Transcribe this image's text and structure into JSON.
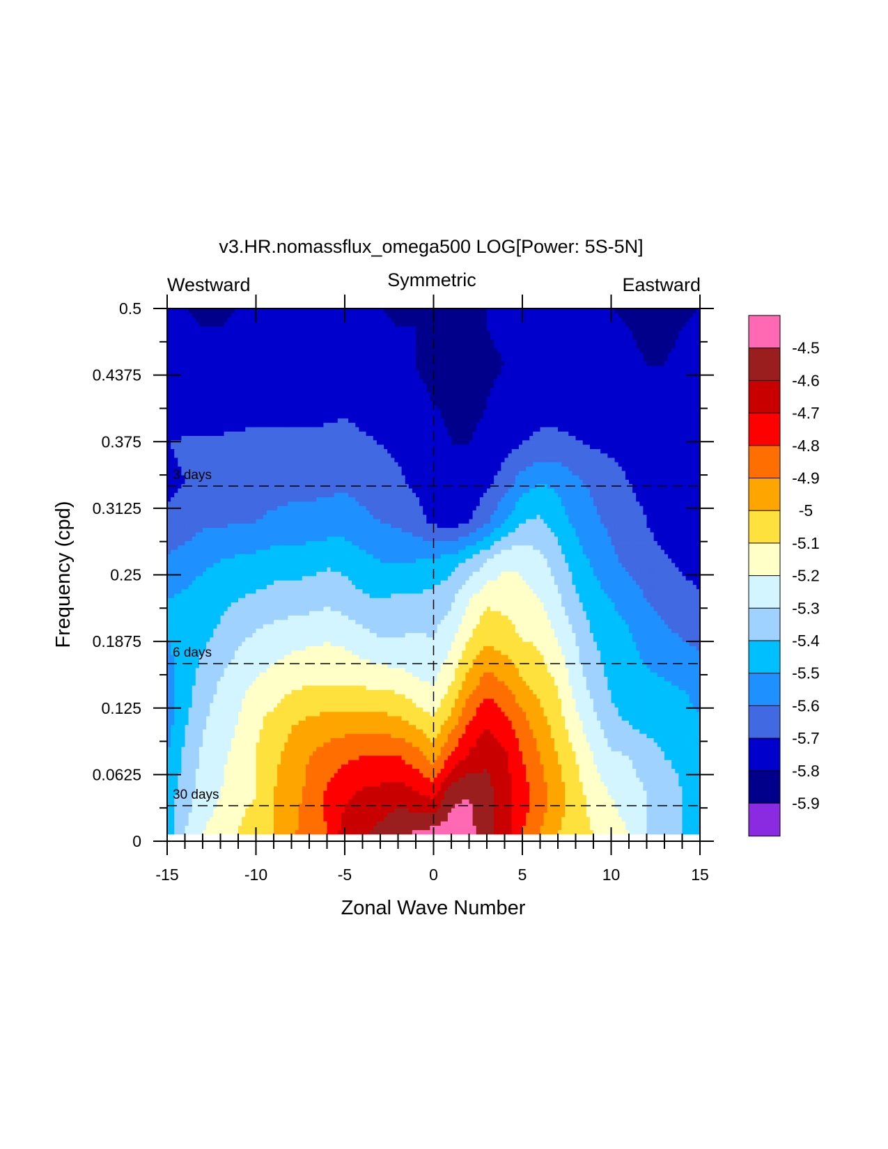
{
  "chart_data": {
    "type": "heatmap",
    "title": "v3.HR.nomassflux_omega500 LOG[Power: 5S-5N]",
    "subtitle_left": "Westward",
    "subtitle_center": "Symmetric",
    "subtitle_right": "Eastward",
    "xlabel": "Zonal Wave Number",
    "ylabel": "Frequency (cpd)",
    "xlim": [
      -15,
      15
    ],
    "ylim": [
      0,
      0.5
    ],
    "x_ticks": [
      -15,
      -10,
      -5,
      0,
      5,
      10,
      15
    ],
    "x_tick_labels": [
      "-15",
      "-10",
      "-5",
      "0",
      "5",
      "10",
      "15"
    ],
    "y_ticks": [
      0,
      0.0625,
      0.125,
      0.1875,
      0.25,
      0.3125,
      0.375,
      0.4375,
      0.5
    ],
    "y_tick_labels": [
      "0",
      "0.0625",
      "0.125",
      "0.1875",
      "0.25",
      "0.3125",
      "0.375",
      "0.4375",
      "0.5"
    ],
    "reference_lines": [
      {
        "label": "3 days",
        "frequency": 0.3333
      },
      {
        "label": "6 days",
        "frequency": 0.1667
      },
      {
        "label": "30 days",
        "frequency": 0.0333
      }
    ],
    "symmetry_line_x": 0,
    "grid_x": [
      -15,
      -14,
      -13,
      -12,
      -11,
      -10,
      -9,
      -8,
      -7,
      -6,
      -5,
      -4,
      -3,
      -2,
      -1,
      0,
      1,
      2,
      3,
      4,
      5,
      6,
      7,
      8,
      9,
      10,
      11,
      12,
      13,
      14,
      15
    ],
    "grid_y": [
      0.00667,
      0.0433,
      0.08,
      0.1167,
      0.1533,
      0.19,
      0.2267,
      0.2633,
      0.3,
      0.3367,
      0.3733,
      0.41,
      0.4467,
      0.4833,
      0.5
    ],
    "z_log10_power": [
      [
        -5.5,
        -5.3,
        -5.2,
        -5.15,
        -5.1,
        -5.0,
        -5.0,
        -4.92,
        -4.85,
        -4.8,
        -4.65,
        -4.62,
        -4.57,
        -4.52,
        -4.48,
        -4.45,
        -4.45,
        -4.47,
        -4.55,
        -4.65,
        -4.8,
        -4.9,
        -5.0,
        -5.05,
        -5.1,
        -5.15,
        -5.2,
        -5.3,
        -5.35,
        -5.4,
        -5.5
      ],
      [
        -5.45,
        -5.35,
        -5.25,
        -5.2,
        -5.15,
        -5.1,
        -5.0,
        -4.93,
        -4.88,
        -4.78,
        -4.72,
        -4.68,
        -4.66,
        -4.64,
        -4.68,
        -4.72,
        -4.52,
        -4.5,
        -4.56,
        -4.65,
        -4.75,
        -4.85,
        -4.95,
        -5.05,
        -5.15,
        -5.2,
        -5.25,
        -5.3,
        -5.35,
        -5.4,
        -5.45
      ],
      [
        -5.5,
        -5.38,
        -5.28,
        -5.22,
        -5.17,
        -5.1,
        -5.03,
        -4.95,
        -4.9,
        -4.85,
        -4.82,
        -4.8,
        -4.8,
        -4.8,
        -4.85,
        -4.95,
        -4.78,
        -4.68,
        -4.62,
        -4.68,
        -4.8,
        -4.9,
        -5.0,
        -5.1,
        -5.2,
        -5.28,
        -5.3,
        -5.35,
        -5.4,
        -5.42,
        -5.5
      ],
      [
        -5.55,
        -5.42,
        -5.32,
        -5.25,
        -5.2,
        -5.12,
        -5.08,
        -5.02,
        -5.0,
        -4.98,
        -4.97,
        -4.97,
        -4.98,
        -5.0,
        -5.05,
        -5.1,
        -4.98,
        -4.82,
        -4.72,
        -4.78,
        -4.88,
        -4.97,
        -5.06,
        -5.18,
        -5.28,
        -5.38,
        -5.42,
        -5.45,
        -5.45,
        -5.45,
        -5.5
      ],
      [
        -5.55,
        -5.45,
        -5.36,
        -5.3,
        -5.24,
        -5.2,
        -5.17,
        -5.14,
        -5.12,
        -5.12,
        -5.13,
        -5.14,
        -5.15,
        -5.16,
        -5.2,
        -5.22,
        -5.12,
        -4.97,
        -4.87,
        -4.92,
        -5.0,
        -5.05,
        -5.12,
        -5.25,
        -5.35,
        -5.42,
        -5.45,
        -5.48,
        -5.5,
        -5.52,
        -5.55
      ],
      [
        -5.5,
        -5.45,
        -5.42,
        -5.38,
        -5.32,
        -5.28,
        -5.25,
        -5.23,
        -5.22,
        -5.21,
        -5.22,
        -5.26,
        -5.3,
        -5.3,
        -5.28,
        -5.3,
        -5.22,
        -5.1,
        -5.02,
        -5.05,
        -5.1,
        -5.12,
        -5.2,
        -5.3,
        -5.4,
        -5.45,
        -5.48,
        -5.55,
        -5.58,
        -5.6,
        -5.62
      ],
      [
        -5.5,
        -5.48,
        -5.45,
        -5.42,
        -5.4,
        -5.38,
        -5.36,
        -5.35,
        -5.34,
        -5.32,
        -5.35,
        -5.38,
        -5.4,
        -5.38,
        -5.38,
        -5.36,
        -5.32,
        -5.2,
        -5.12,
        -5.13,
        -5.17,
        -5.2,
        -5.28,
        -5.38,
        -5.45,
        -5.5,
        -5.55,
        -5.6,
        -5.63,
        -5.66,
        -5.68
      ],
      [
        -5.58,
        -5.55,
        -5.52,
        -5.5,
        -5.48,
        -5.47,
        -5.45,
        -5.45,
        -5.44,
        -5.42,
        -5.43,
        -5.47,
        -5.5,
        -5.5,
        -5.5,
        -5.48,
        -5.45,
        -5.38,
        -5.3,
        -5.22,
        -5.22,
        -5.27,
        -5.35,
        -5.45,
        -5.52,
        -5.58,
        -5.62,
        -5.66,
        -5.69,
        -5.72,
        -5.75
      ],
      [
        -5.68,
        -5.66,
        -5.62,
        -5.62,
        -5.6,
        -5.6,
        -5.58,
        -5.57,
        -5.57,
        -5.56,
        -5.55,
        -5.58,
        -5.6,
        -5.62,
        -5.65,
        -5.72,
        -5.75,
        -5.7,
        -5.62,
        -5.5,
        -5.4,
        -5.38,
        -5.45,
        -5.52,
        -5.58,
        -5.62,
        -5.66,
        -5.7,
        -5.74,
        -5.78,
        -5.8
      ],
      [
        -5.72,
        -5.7,
        -5.68,
        -5.67,
        -5.66,
        -5.65,
        -5.64,
        -5.63,
        -5.63,
        -5.62,
        -5.62,
        -5.63,
        -5.66,
        -5.68,
        -5.72,
        -5.78,
        -5.8,
        -5.78,
        -5.72,
        -5.65,
        -5.55,
        -5.5,
        -5.52,
        -5.58,
        -5.62,
        -5.66,
        -5.7,
        -5.73,
        -5.76,
        -5.78,
        -5.8
      ],
      [
        -5.7,
        -5.69,
        -5.68,
        -5.68,
        -5.67,
        -5.66,
        -5.66,
        -5.66,
        -5.67,
        -5.67,
        -5.66,
        -5.68,
        -5.7,
        -5.72,
        -5.74,
        -5.78,
        -5.8,
        -5.8,
        -5.78,
        -5.74,
        -5.7,
        -5.67,
        -5.67,
        -5.69,
        -5.71,
        -5.72,
        -5.73,
        -5.75,
        -5.77,
        -5.78,
        -5.78
      ],
      [
        -5.75,
        -5.75,
        -5.76,
        -5.76,
        -5.76,
        -5.75,
        -5.75,
        -5.75,
        -5.74,
        -5.73,
        -5.72,
        -5.74,
        -5.77,
        -5.78,
        -5.79,
        -5.8,
        -5.81,
        -5.82,
        -5.8,
        -5.78,
        -5.76,
        -5.75,
        -5.75,
        -5.75,
        -5.76,
        -5.76,
        -5.77,
        -5.78,
        -5.79,
        -5.78,
        -5.78
      ],
      [
        -5.76,
        -5.77,
        -5.78,
        -5.79,
        -5.79,
        -5.78,
        -5.77,
        -5.76,
        -5.76,
        -5.75,
        -5.76,
        -5.77,
        -5.78,
        -5.79,
        -5.8,
        -5.81,
        -5.82,
        -5.82,
        -5.81,
        -5.8,
        -5.79,
        -5.77,
        -5.76,
        -5.76,
        -5.77,
        -5.78,
        -5.79,
        -5.8,
        -5.8,
        -5.79,
        -5.78
      ],
      [
        -5.78,
        -5.79,
        -5.8,
        -5.8,
        -5.79,
        -5.78,
        -5.78,
        -5.77,
        -5.77,
        -5.76,
        -5.77,
        -5.78,
        -5.79,
        -5.8,
        -5.8,
        -5.81,
        -5.82,
        -5.81,
        -5.8,
        -5.79,
        -5.78,
        -5.77,
        -5.77,
        -5.77,
        -5.78,
        -5.79,
        -5.8,
        -5.81,
        -5.81,
        -5.8,
        -5.79
      ],
      [
        -5.79,
        -5.8,
        -5.81,
        -5.81,
        -5.8,
        -5.79,
        -5.79,
        -5.78,
        -5.78,
        -5.77,
        -5.78,
        -5.79,
        -5.8,
        -5.81,
        -5.81,
        -5.82,
        -5.82,
        -5.81,
        -5.8,
        -5.8,
        -5.79,
        -5.78,
        -5.78,
        -5.78,
        -5.79,
        -5.8,
        -5.81,
        -5.82,
        -5.82,
        -5.81,
        -5.8
      ]
    ],
    "contour_levels": [
      -5.9,
      -5.8,
      -5.7,
      -5.6,
      -5.5,
      -5.4,
      -5.3,
      -5.2,
      -5.1,
      -5,
      -4.9,
      -4.8,
      -4.7,
      -4.6,
      -4.5
    ],
    "colorbar_labels": [
      "-4.5",
      "-4.6",
      "-4.7",
      "-4.8",
      "-4.9",
      "-5",
      "-5.1",
      "-5.2",
      "-5.3",
      "-5.4",
      "-5.5",
      "-5.6",
      "-5.7",
      "-5.8",
      "-5.9"
    ],
    "colormap": [
      "#8a2be2",
      "#00008b",
      "#0000cd",
      "#4169e1",
      "#1e90ff",
      "#00bfff",
      "#a0d2ff",
      "#d2f5ff",
      "#ffffc8",
      "#ffe13d",
      "#ffa500",
      "#ff6e00",
      "#ff0000",
      "#c80000",
      "#9b1e1e",
      "#ff69b4"
    ]
  }
}
